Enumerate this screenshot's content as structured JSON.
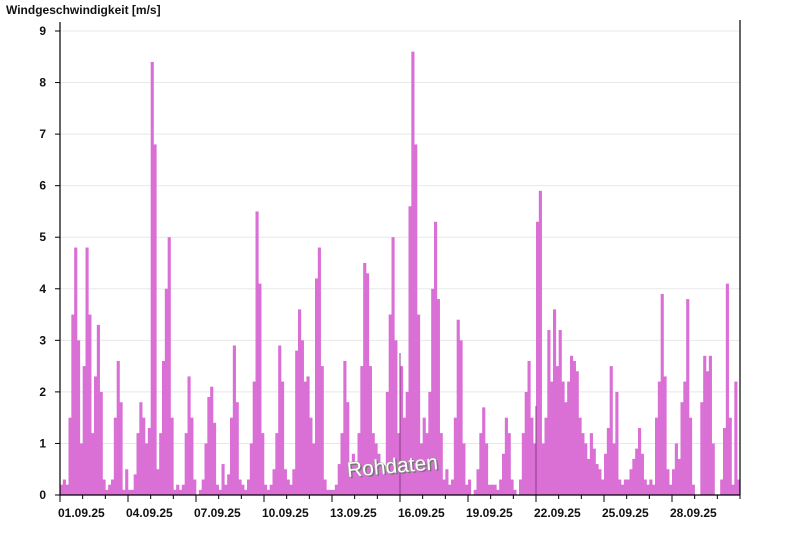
{
  "chart_data": {
    "type": "bar",
    "title": "Windgeschwindigkeit [m/s]",
    "xlabel": "",
    "ylabel": "",
    "ylim": [
      0,
      9
    ],
    "y_ticks": [
      "0",
      "1",
      "2",
      "3",
      "4",
      "5",
      "6",
      "7",
      "8",
      "9"
    ],
    "x_range": [
      "01.09.25",
      "01.10.25"
    ],
    "x_tick_labels": [
      "01.09.25",
      "04.09.25",
      "07.09.25",
      "10.09.25",
      "13.09.25",
      "16.09.25",
      "19.09.25",
      "22.09.25",
      "25.09.25",
      "28.09.25"
    ],
    "grid": "horizontal",
    "bar_color": "#da70d6",
    "annotation": "Rohdaten",
    "series": [
      {
        "values": [
          0.2,
          0.3,
          0.2,
          1.5,
          3.5,
          4.8,
          3.0,
          1.0,
          2.5,
          4.8,
          3.5,
          1.2,
          2.3,
          3.3,
          2.0,
          0.3,
          0.1,
          0.2,
          0.3,
          1.5,
          2.6,
          1.8,
          0.1,
          0.5,
          0.1,
          0.1,
          0.4,
          1.2,
          1.8,
          1.5,
          1.0,
          1.3,
          8.4,
          6.8,
          0.5,
          1.2,
          2.6,
          4.0,
          5.0,
          1.5,
          0.1,
          0.2,
          0.1,
          0.2,
          1.2,
          2.3,
          1.5,
          0.3,
          0.0,
          0.1,
          0.3,
          1.0,
          1.9,
          2.1,
          1.4,
          0.2,
          0.1,
          0.6,
          0.2,
          0.4,
          1.5,
          2.9,
          1.8,
          0.3,
          0.2,
          0.1,
          0.3,
          1.0,
          2.2,
          5.5,
          4.1,
          1.2,
          0.2,
          0.1,
          0.2,
          0.5,
          1.2,
          2.9,
          2.2,
          0.5,
          0.3,
          0.2,
          0.5,
          2.8,
          3.6,
          3.0,
          2.2,
          2.3,
          1.5,
          1.0,
          4.2,
          4.8,
          2.5,
          0.3,
          0.1,
          0.1,
          0.1,
          0.2,
          0.6,
          1.2,
          2.6,
          1.8,
          0.6,
          0.8,
          0.6,
          1.2,
          2.5,
          4.5,
          4.3,
          2.5,
          1.2,
          1.0,
          0.8,
          0.6,
          0.4,
          2.0,
          3.5,
          5.0,
          3.0,
          1.2,
          2.5,
          1.5,
          2.0,
          5.6,
          8.6,
          6.8,
          3.5,
          1.0,
          1.5,
          1.2,
          2.0,
          4.0,
          5.3,
          3.8,
          1.2,
          0.3,
          0.5,
          0.2,
          0.3,
          1.5,
          3.4,
          3.0,
          1.0,
          0.2,
          0.3,
          0.0,
          0.1,
          0.5,
          1.2,
          1.7,
          1.0,
          0.2,
          0.2,
          0.2,
          0.1,
          0.3,
          0.8,
          1.5,
          1.2,
          0.3,
          0.1,
          0.0,
          0.3,
          1.2,
          2.0,
          2.6,
          1.5,
          1.0,
          5.3,
          5.9,
          1.0,
          1.5,
          3.2,
          2.2,
          3.6,
          2.5,
          3.2,
          2.2,
          1.8,
          2.2,
          2.7,
          2.6,
          2.4,
          1.5,
          1.2,
          1.0,
          0.7,
          1.2,
          0.9,
          0.6,
          0.5,
          0.3,
          0.8,
          1.3,
          2.5,
          1.0,
          2.0,
          0.3,
          0.2,
          0.3,
          0.3,
          0.5,
          0.7,
          0.9,
          1.3,
          0.8,
          0.3,
          0.2,
          0.3,
          0.2,
          1.5,
          2.2,
          3.9,
          2.3,
          0.5,
          0.2,
          0.5,
          1.0,
          0.7,
          1.8,
          2.2,
          3.8,
          1.5,
          0.2,
          0.0,
          0.0,
          1.8,
          2.7,
          2.4,
          2.7,
          1.0,
          0.0,
          0.0,
          0.3,
          1.3,
          4.1,
          1.5,
          0.2,
          2.2,
          0.3
        ]
      }
    ]
  }
}
